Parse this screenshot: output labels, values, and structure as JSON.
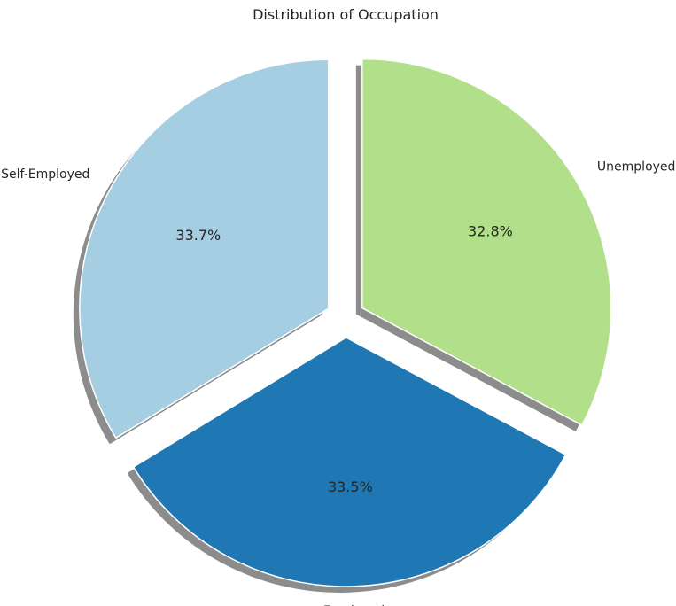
{
  "chart_data": {
    "type": "pie",
    "title": "Distribution of Occupation",
    "categories": [
      "Self-Employed",
      "Employed",
      "Unemployed"
    ],
    "values": [
      33.7,
      33.5,
      32.8
    ],
    "value_labels": [
      "33.7%",
      "33.5%",
      "32.8%"
    ],
    "colors": [
      "#a6cee3",
      "#1f78b4",
      "#b2df8a"
    ],
    "start_angle_deg": 90,
    "direction": "counterclockwise",
    "exploded": true,
    "shadow": true,
    "legend": "none"
  }
}
